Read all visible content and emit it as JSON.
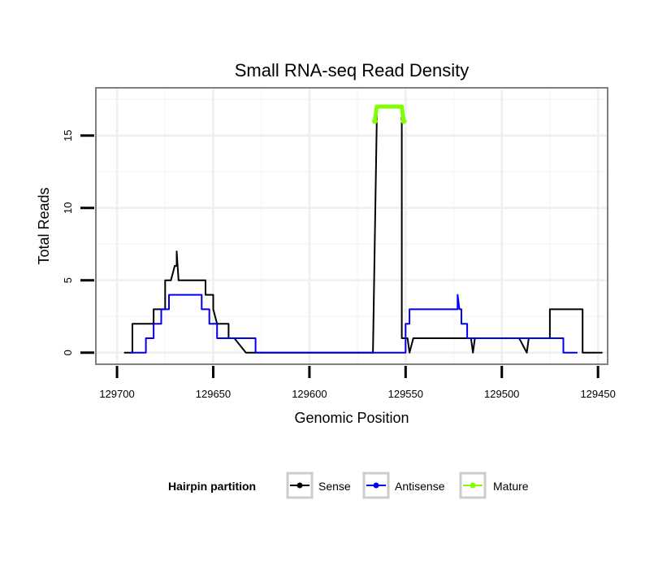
{
  "chart_data": {
    "type": "line",
    "title": "Small RNA-seq Read Density",
    "xlabel": "Genomic Position",
    "ylabel": "Total Reads",
    "xlim": [
      129711,
      129445
    ],
    "x_reversed": true,
    "ylim": [
      -0.8,
      18.3
    ],
    "grid": true,
    "x_ticks": [
      129700,
      129650,
      129600,
      129550,
      129500,
      129450
    ],
    "x_tick_labels": [
      "129700",
      "129650",
      "129600",
      "129550",
      "129500",
      "129450"
    ],
    "y_ticks": [
      0,
      5,
      10,
      15
    ],
    "y_tick_labels": [
      "0",
      "5",
      "10",
      "15"
    ],
    "legend": {
      "title": "Hairpin partition",
      "position": "bottom",
      "entries": [
        {
          "name": "Sense",
          "color": "#000000"
        },
        {
          "name": "Antisense",
          "color": "#0000ee"
        },
        {
          "name": "Mature",
          "color": "#7fff00"
        }
      ]
    },
    "series": [
      {
        "name": "Sense",
        "color": "#000000",
        "x": [
          129696,
          129692,
          129692,
          129681,
          129681,
          129675,
          129675,
          129672,
          129670,
          129669,
          129669,
          129668,
          129667,
          129667,
          129654,
          129654,
          129650,
          129650,
          129648,
          129642,
          129642,
          129639,
          129633,
          129567,
          129565,
          129565,
          129552,
          129552,
          129549,
          129548,
          129546,
          129517,
          129516,
          129515,
          129514,
          129511,
          129491,
          129487,
          129486,
          129485,
          129483,
          129475,
          129475,
          129458,
          129458,
          129448
        ],
        "y": [
          0,
          0,
          2,
          2,
          3,
          3,
          5,
          5,
          6,
          6,
          7,
          5,
          5,
          5,
          5,
          4,
          4,
          3,
          2,
          2,
          1,
          1,
          0,
          0,
          16,
          17,
          17,
          1,
          1,
          0,
          1,
          1,
          1,
          0,
          1,
          1,
          1,
          0,
          1,
          1,
          1,
          1,
          3,
          3,
          0,
          0
        ]
      },
      {
        "name": "Antisense",
        "color": "#0000ee",
        "x": [
          129693,
          129685,
          129685,
          129681,
          129681,
          129677,
          129677,
          129673,
          129673,
          129656,
          129656,
          129652,
          129652,
          129648,
          129648,
          129642,
          129642,
          129628,
          129628,
          129566,
          129552,
          129550,
          129550,
          129548,
          129548,
          129546,
          129546,
          129524,
          129523,
          129523,
          129522,
          129521,
          129521,
          129518,
          129518,
          129516,
          129516,
          129490,
          129490,
          129468,
          129468,
          129461
        ],
        "y": [
          0,
          0,
          1,
          1,
          2,
          2,
          3,
          3,
          4,
          4,
          3,
          3,
          2,
          2,
          1,
          1,
          1,
          1,
          0,
          0,
          0,
          0,
          2,
          2,
          3,
          3,
          3,
          3,
          3,
          4,
          3,
          3,
          2,
          2,
          1,
          1,
          1,
          1,
          1,
          1,
          0,
          0
        ]
      },
      {
        "name": "Mature",
        "color": "#7fff00",
        "x": [
          129566,
          129565,
          129552,
          129551
        ],
        "y": [
          16,
          17,
          17,
          16
        ],
        "points": [
          {
            "x": 129566,
            "y": 16
          },
          {
            "x": 129551,
            "y": 16
          }
        ]
      }
    ]
  }
}
